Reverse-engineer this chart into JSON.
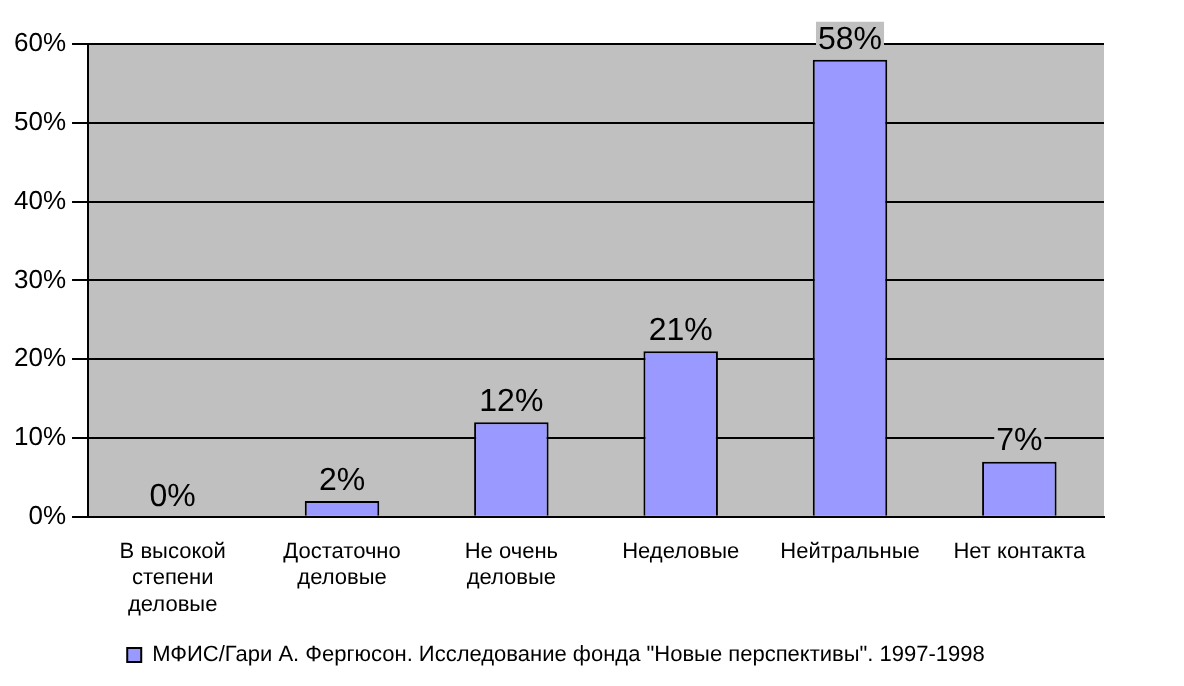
{
  "chart_data": {
    "type": "bar",
    "categories": [
      "В высокой степени деловые",
      "Достаточно деловые",
      "Не очень деловые",
      "Неделовые",
      "Нейтральные",
      "Нет контакта"
    ],
    "series": [
      {
        "name": "МФИС/Гари А. Фергюсон. Исследование фонда \"Новые перспективы\". 1997-1998",
        "color": "#9999ff",
        "values": [
          0,
          2,
          12,
          21,
          58,
          7
        ],
        "value_labels": [
          "0%",
          "2%",
          "12%",
          "21%",
          "58%",
          "7%"
        ]
      }
    ],
    "ylim": [
      0,
      60
    ],
    "yticks": [
      {
        "value": 0,
        "label": "0%"
      },
      {
        "value": 10,
        "label": "10%"
      },
      {
        "value": 20,
        "label": "20%"
      },
      {
        "value": 30,
        "label": "30%"
      },
      {
        "value": 40,
        "label": "40%"
      },
      {
        "value": 50,
        "label": "50%"
      },
      {
        "value": 60,
        "label": "60%"
      }
    ],
    "grid": "y",
    "legend": "bottom"
  }
}
